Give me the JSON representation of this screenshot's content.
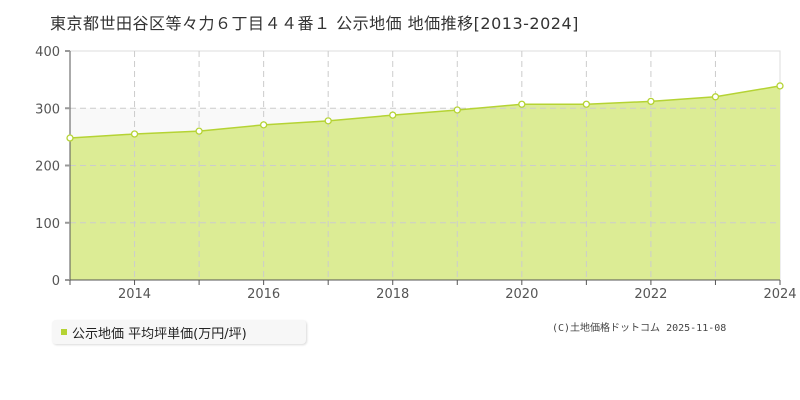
{
  "title": "東京都世田谷区等々力６丁目４４番１ 公示地価 地価推移[2013-2024]",
  "legend": {
    "label": "公示地価 平均坪単価(万円/坪)",
    "color": "#b5d334"
  },
  "credit": "(C)土地価格ドットコム 2025-11-08",
  "colors": {
    "fill": "#dcec95",
    "line": "#b5d334",
    "grid": "#cccccc",
    "axis": "#555555",
    "above_band": "#f9f9f9"
  },
  "chart_data": {
    "type": "area",
    "title": "東京都世田谷区等々力６丁目４４番１ 公示地価 地価推移[2013-2024]",
    "xlabel": "",
    "ylabel": "",
    "x": [
      2013,
      2014,
      2015,
      2016,
      2017,
      2018,
      2019,
      2020,
      2021,
      2022,
      2023,
      2024
    ],
    "series": [
      {
        "name": "公示地価 平均坪単価(万円/坪)",
        "values": [
          248,
          255,
          260,
          271,
          278,
          288,
          297,
          307,
          307,
          312,
          320,
          339
        ]
      }
    ],
    "ylim": [
      0,
      400
    ],
    "yticks": [
      0,
      100,
      200,
      300,
      400
    ],
    "xticks": [
      2014,
      2016,
      2018,
      2020,
      2022,
      2024
    ],
    "grid": true,
    "legend_position": "bottom-left"
  }
}
